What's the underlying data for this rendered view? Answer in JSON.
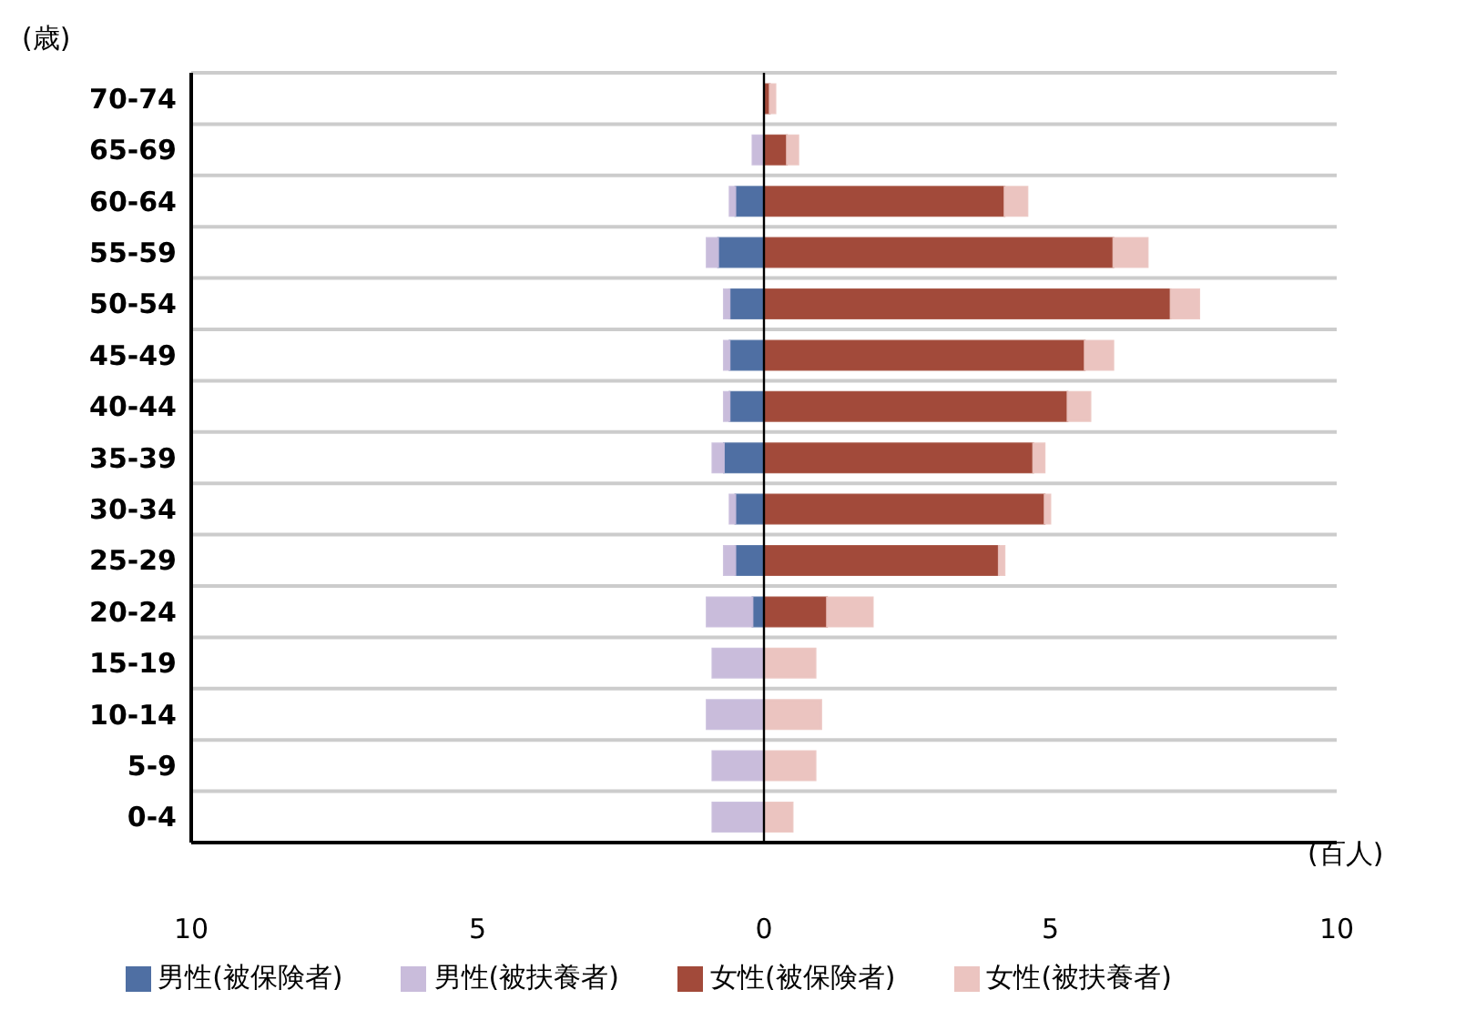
{
  "chart_data": {
    "type": "bar",
    "orientation": "horizontal",
    "stacked": true,
    "ylabel": "(歳)",
    "xlabel": "(百人)",
    "categories": [
      "70-74",
      "65-69",
      "60-64",
      "55-59",
      "50-54",
      "45-49",
      "40-44",
      "35-39",
      "30-34",
      "25-29",
      "20-24",
      "15-19",
      "10-14",
      "5-9",
      "0-4"
    ],
    "series": [
      {
        "name": "男性(被保険者)",
        "color": "#4f6fa3",
        "values": [
          0,
          0,
          -0.5,
          -0.8,
          -0.6,
          -0.6,
          -0.6,
          -0.7,
          -0.5,
          -0.5,
          -0.2,
          0,
          0,
          0,
          0
        ]
      },
      {
        "name": "男性(被扶養者)",
        "color": "#c9bcdb",
        "values": [
          0,
          -0.2,
          -0.1,
          -0.2,
          -0.1,
          -0.1,
          -0.1,
          -0.2,
          -0.1,
          -0.2,
          -0.8,
          -0.9,
          -1.0,
          -0.9,
          -0.9
        ]
      },
      {
        "name": "女性(被保険者)",
        "color": "#a24a3a",
        "values": [
          0.1,
          0.4,
          4.2,
          6.1,
          7.1,
          5.6,
          5.3,
          4.7,
          4.9,
          4.1,
          1.1,
          0,
          0,
          0,
          0
        ]
      },
      {
        "name": "女性(被扶養者)",
        "color": "#ebc4c0",
        "values": [
          0.1,
          0.2,
          0.4,
          0.6,
          0.5,
          0.5,
          0.4,
          0.2,
          0.1,
          0.1,
          0.8,
          0.9,
          1.0,
          0.9,
          0.5
        ]
      }
    ],
    "xlim": [
      -10,
      10
    ],
    "xticks": [
      {
        "value": -10,
        "label": "10"
      },
      {
        "value": -5,
        "label": "5"
      },
      0,
      5,
      10
    ],
    "ref_lines": [
      {
        "axis": "x",
        "value": 0,
        "color": "#000000"
      }
    ],
    "grid": "y",
    "legend": "bottom"
  }
}
